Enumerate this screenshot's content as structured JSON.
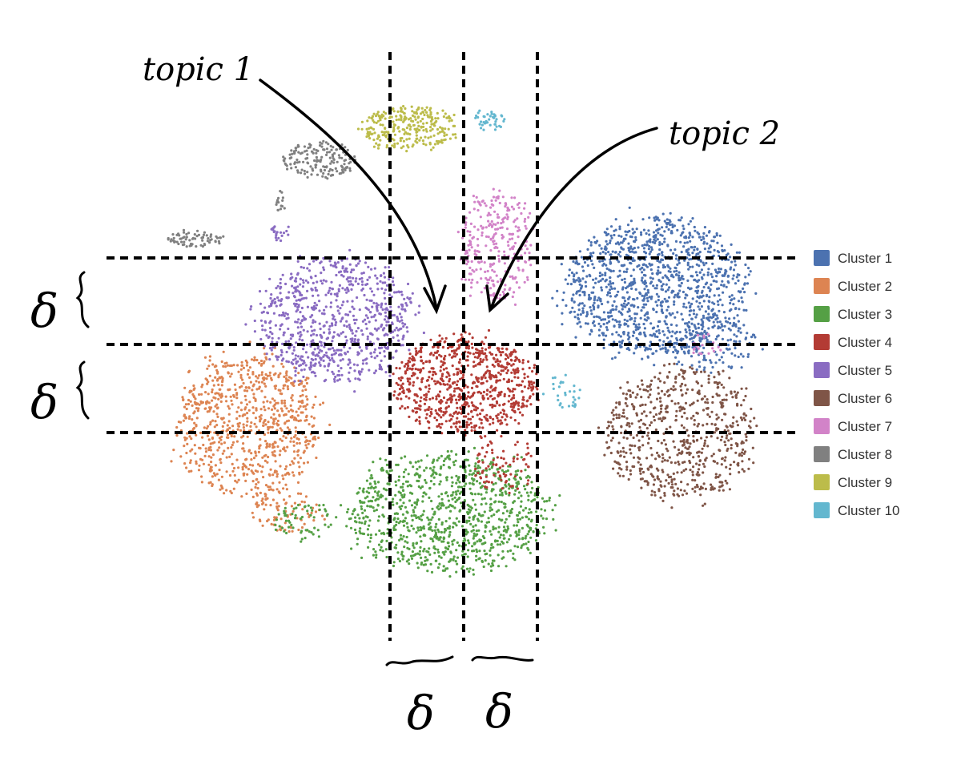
{
  "chart_data": {
    "type": "scatter",
    "title": "",
    "xlabel": "",
    "ylabel": "",
    "axes_visible": false,
    "grid": false,
    "legend_position": "right",
    "series": [
      {
        "name": "Cluster 1",
        "color": "#4c72b0"
      },
      {
        "name": "Cluster 2",
        "color": "#dd8452"
      },
      {
        "name": "Cluster 3",
        "color": "#55a045"
      },
      {
        "name": "Cluster 4",
        "color": "#b33b34"
      },
      {
        "name": "Cluster 5",
        "color": "#8a6cc2"
      },
      {
        "name": "Cluster 6",
        "color": "#7f5547"
      },
      {
        "name": "Cluster 7",
        "color": "#d283c8"
      },
      {
        "name": "Cluster 8",
        "color": "#808080"
      },
      {
        "name": "Cluster 9",
        "color": "#bcbc4a"
      },
      {
        "name": "Cluster 10",
        "color": "#63b7cf"
      }
    ],
    "annotations": {
      "topic1": "topic 1",
      "topic2": "topic 2",
      "delta": "δ"
    }
  }
}
